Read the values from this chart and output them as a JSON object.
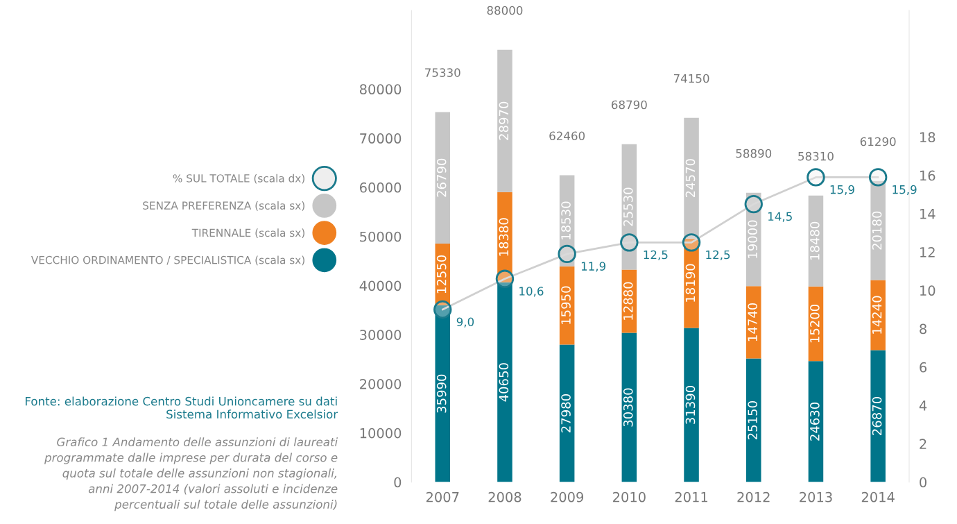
{
  "chart_data": {
    "type": "bar",
    "stacked": true,
    "title": "Grafico 1 Andamento delle assunzioni di laureati programmate dalle imprese per durata del corso e quota sul totale delle assunzioni non stagionali, anni 2007-2014 (valori assoluti e incidenze percentuali sul totale delle assunzioni)",
    "annotations": [
      "Fonte: elaborazione Centro Studi Unioncamere su dati Sistema Informativo Excelsior"
    ],
    "categories": [
      "2007",
      "2008",
      "2009",
      "2010",
      "2011",
      "2012",
      "2013",
      "2014"
    ],
    "series": [
      {
        "name": "VECCHIO ORDINAMENTO / SPECIALISTICA (scala sx)",
        "color": "#00758a",
        "values": [
          35990,
          40650,
          27980,
          30380,
          31390,
          25150,
          24630,
          26870
        ]
      },
      {
        "name": "TIRENNALE (scala sx)",
        "color": "#f08020",
        "values": [
          12550,
          18380,
          15950,
          12880,
          18190,
          14740,
          15200,
          14240
        ]
      },
      {
        "name": "SENZA PREFERENZA (scala sx)",
        "color": "#c6c6c6",
        "values": [
          26790,
          28970,
          18530,
          25530,
          24570,
          19000,
          18480,
          20180
        ]
      },
      {
        "name": "% SUL TOTALE (scala dx)",
        "type": "line",
        "axis": "y2",
        "color": "#1a7a8c",
        "marker": "circle",
        "values": [
          9.0,
          10.6,
          11.9,
          12.5,
          12.5,
          14.5,
          15.9,
          15.9
        ],
        "value_labels": [
          "9,0",
          "10,6",
          "11,9",
          "12,5",
          "12,5",
          "14,5",
          "15,9",
          "15,9"
        ]
      }
    ],
    "totals": [
      "75330",
      "88000",
      "62460",
      "68790",
      "74150",
      "58890",
      "58310",
      "61290"
    ],
    "data_labels": true,
    "ylim": [
      0,
      96000
    ],
    "yticks": [
      0,
      10000,
      20000,
      30000,
      40000,
      50000,
      60000,
      70000,
      80000
    ],
    "y2lim": [
      0,
      24.6
    ],
    "y2ticks": [
      0,
      2,
      4,
      6,
      8,
      10,
      12,
      14,
      16,
      18
    ],
    "grid": false,
    "legend": "left"
  }
}
